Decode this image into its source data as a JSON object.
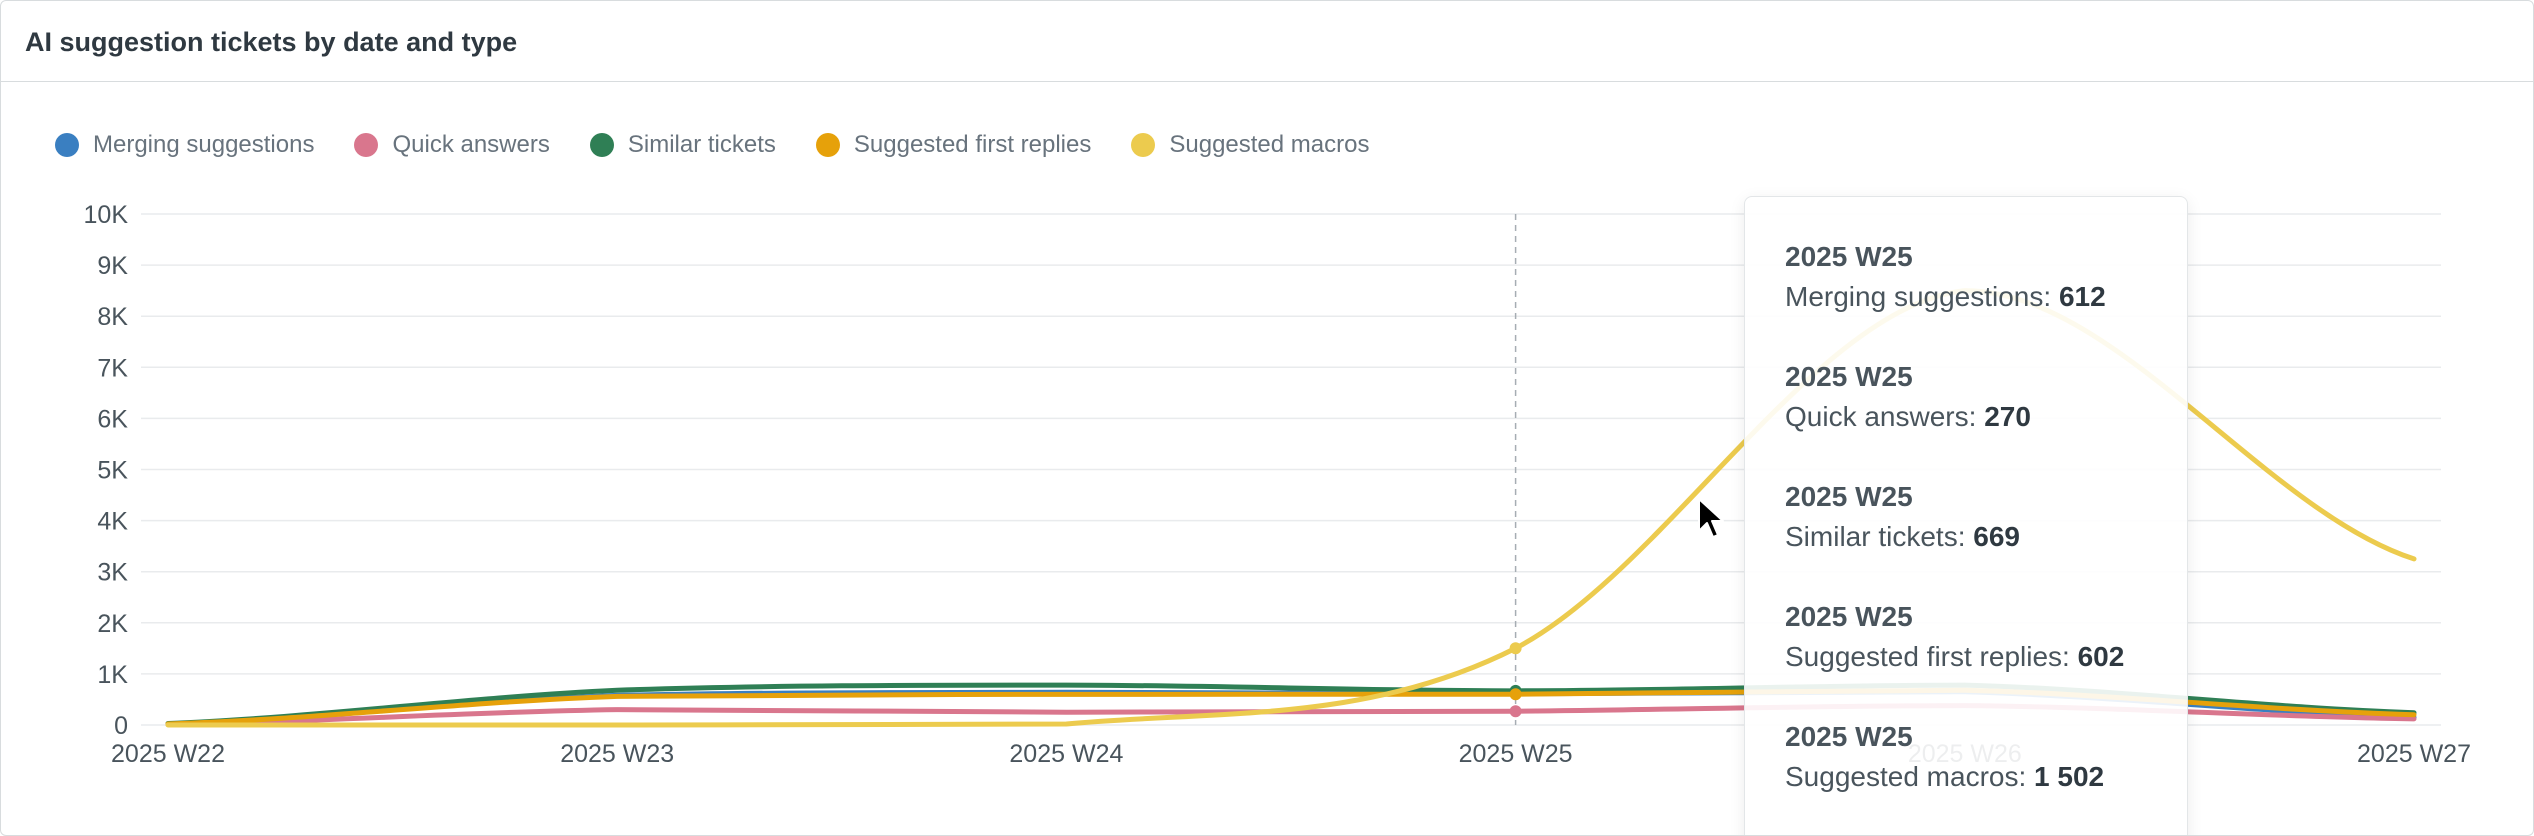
{
  "panel": {
    "title": "AI suggestion tickets by date and type"
  },
  "legend": [
    {
      "label": "Merging suggestions",
      "color": "#3a7fc1"
    },
    {
      "label": "Quick answers",
      "color": "#d9768d"
    },
    {
      "label": "Similar tickets",
      "color": "#2f7f55"
    },
    {
      "label": "Suggested first replies",
      "color": "#e6a10a"
    },
    {
      "label": "Suggested macros",
      "color": "#eccb4e"
    }
  ],
  "chart_data": {
    "type": "line",
    "x": [
      "2025 W22",
      "2025 W23",
      "2025 W24",
      "2025 W25",
      "2025 W26",
      "2025 W27"
    ],
    "ylim": [
      0,
      10000
    ],
    "yticks": [
      "0",
      "1K",
      "2K",
      "3K",
      "4K",
      "5K",
      "6K",
      "7K",
      "8K",
      "9K",
      "10K"
    ],
    "grid": true,
    "legend_position": "top-left",
    "series": [
      {
        "name": "Merging suggestions",
        "color": "#3a7fc1",
        "values": [
          20,
          580,
          640,
          612,
          650,
          150
        ]
      },
      {
        "name": "Quick answers",
        "color": "#d9768d",
        "values": [
          10,
          300,
          250,
          270,
          380,
          120
        ]
      },
      {
        "name": "Similar tickets",
        "color": "#2f7f55",
        "values": [
          30,
          680,
          780,
          669,
          780,
          240
        ]
      },
      {
        "name": "Suggested first replies",
        "color": "#e6a10a",
        "values": [
          20,
          560,
          600,
          602,
          680,
          200
        ]
      },
      {
        "name": "Suggested macros",
        "color": "#eccb4e",
        "values": [
          0,
          0,
          20,
          1502,
          8500,
          3250
        ]
      }
    ]
  },
  "tooltip": {
    "entries": [
      {
        "title": "2025 W25",
        "label": "Merging suggestions:",
        "value": "612"
      },
      {
        "title": "2025 W25",
        "label": "Quick answers:",
        "value": "270"
      },
      {
        "title": "2025 W25",
        "label": "Similar tickets:",
        "value": "669"
      },
      {
        "title": "2025 W25",
        "label": "Suggested first replies:",
        "value": "602"
      },
      {
        "title": "2025 W25",
        "label": "Suggested macros:",
        "value": "1 502"
      }
    ]
  }
}
